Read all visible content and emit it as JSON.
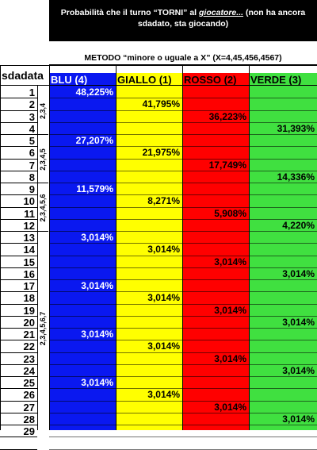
{
  "header": {
    "title_pre": "Probabilità che il turno “TORNI” al ",
    "title_link": "giocatore...",
    "title_post": " (non ha ancora sdadato, sta giocando)",
    "method": "METODO “minore o uguale a X” (X=4,45,456,4567)"
  },
  "table": {
    "row_header": "sdadata",
    "columns": [
      {
        "label": "BLU (4)",
        "color": "#0a18f0"
      },
      {
        "label": "GIALLO (1)",
        "color": "#ffff00"
      },
      {
        "label": "ROSSO (2)",
        "color": "#ff0000"
      },
      {
        "label": "VERDE (3)",
        "color": "#40e040"
      }
    ],
    "groups": [
      "2,3,4",
      "2,3,4,5",
      "2,3,4,5,6",
      "2,3,4,5,6,7"
    ],
    "rows": [
      [
        "48,225%",
        "",
        "",
        ""
      ],
      [
        "",
        "41,795%",
        "",
        ""
      ],
      [
        "",
        "",
        "36,223%",
        ""
      ],
      [
        "",
        "",
        "",
        "31,393%"
      ],
      [
        "27,207%",
        "",
        "",
        ""
      ],
      [
        "",
        "21,975%",
        "",
        ""
      ],
      [
        "",
        "",
        "17,749%",
        ""
      ],
      [
        "",
        "",
        "",
        "14,336%"
      ],
      [
        "11,579%",
        "",
        "",
        ""
      ],
      [
        "",
        "8,271%",
        "",
        ""
      ],
      [
        "",
        "",
        "5,908%",
        ""
      ],
      [
        "",
        "",
        "",
        "4,220%"
      ],
      [
        "3,014%",
        "",
        "",
        ""
      ],
      [
        "",
        "3,014%",
        "",
        ""
      ],
      [
        "",
        "",
        "3,014%",
        ""
      ],
      [
        "",
        "",
        "",
        "3,014%"
      ],
      [
        "3,014%",
        "",
        "",
        ""
      ],
      [
        "",
        "3,014%",
        "",
        ""
      ],
      [
        "",
        "",
        "3,014%",
        ""
      ],
      [
        "",
        "",
        "",
        "3,014%"
      ],
      [
        "3,014%",
        "",
        "",
        ""
      ],
      [
        "",
        "3,014%",
        "",
        ""
      ],
      [
        "",
        "",
        "3,014%",
        ""
      ],
      [
        "",
        "",
        "",
        "3,014%"
      ],
      [
        "3,014%",
        "",
        "",
        ""
      ],
      [
        "",
        "3,014%",
        "",
        ""
      ],
      [
        "",
        "",
        "3,014%",
        ""
      ],
      [
        "",
        "",
        "",
        "3,014%"
      ],
      [
        "",
        "",
        "",
        ""
      ]
    ],
    "row_numbers": [
      "1",
      "2",
      "3",
      "4",
      "5",
      "6",
      "7",
      "8",
      "9",
      "10",
      "11",
      "12",
      "13",
      "14",
      "15",
      "16",
      "17",
      "18",
      "19",
      "20",
      "21",
      "22",
      "23",
      "24",
      "25",
      "26",
      "27",
      "28",
      "29"
    ]
  }
}
